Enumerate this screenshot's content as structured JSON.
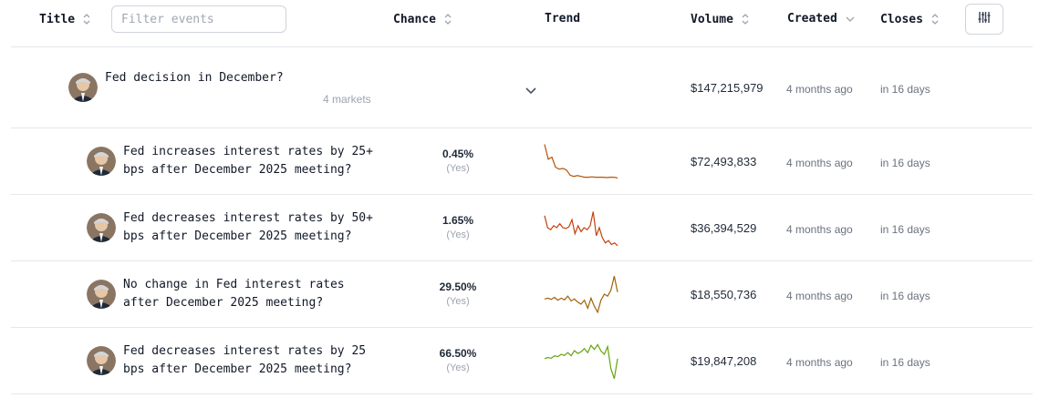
{
  "header": {
    "title": "Title",
    "filter_placeholder": "Filter events",
    "chance": "Chance",
    "trend": "Trend",
    "volume": "Volume",
    "created": "Created",
    "closes": "Closes",
    "settings_icon": "sliders-icon"
  },
  "event": {
    "title": "Fed decision in December?",
    "markets_count": "4 markets",
    "volume": "$147,215,979",
    "created": "4 months ago",
    "closes": "in 16 days"
  },
  "markets": [
    {
      "title_line1": "Fed increases interest rates by 25+",
      "title_line2": "bps after December 2025 meeting?",
      "chance": "0.45%",
      "outcome": "(Yes)",
      "volume": "$72,493,833",
      "created": "4 months ago",
      "closes": "in 16 days",
      "trend_color": "#b45309",
      "trend": [
        0.92,
        0.55,
        0.6,
        0.35,
        0.3,
        0.32,
        0.28,
        0.15,
        0.12,
        0.14,
        0.12,
        0.1,
        0.1,
        0.11,
        0.1,
        0.1,
        0.1,
        0.09,
        0.1,
        0.1,
        0.08
      ]
    },
    {
      "title_line1": "Fed decreases interest rates by 50+",
      "title_line2": "bps after December 2025 meeting?",
      "chance": "1.65%",
      "outcome": "(Yes)",
      "volume": "$36,394,529",
      "created": "4 months ago",
      "closes": "in 16 days",
      "trend_color": "#c2410c",
      "trend": [
        0.8,
        0.5,
        0.45,
        0.55,
        0.5,
        0.6,
        0.5,
        0.48,
        0.52,
        0.7,
        0.35,
        0.55,
        0.4,
        0.5,
        0.45,
        0.55,
        0.9,
        0.3,
        0.5,
        0.25,
        0.12,
        0.18,
        0.08,
        0.12,
        0.05
      ]
    },
    {
      "title_line1": "No change in Fed interest rates",
      "title_line2": "after December 2025 meeting?",
      "chance": "29.50%",
      "outcome": "(Yes)",
      "volume": "$18,550,736",
      "created": "4 months ago",
      "closes": "in 16 days",
      "trend_color": "#a16207",
      "trend": [
        0.38,
        0.4,
        0.37,
        0.42,
        0.35,
        0.4,
        0.36,
        0.45,
        0.33,
        0.38,
        0.3,
        0.25,
        0.35,
        0.15,
        0.4,
        0.2,
        0.05,
        0.35,
        0.5,
        0.45,
        0.6,
        0.95,
        0.55
      ]
    },
    {
      "title_line1": "Fed decreases interest rates by 25",
      "title_line2": "bps after December 2025 meeting?",
      "chance": "66.50%",
      "outcome": "(Yes)",
      "volume": "$19,847,208",
      "created": "4 months ago",
      "closes": "in 16 days",
      "trend_color": "#65a30d",
      "trend": [
        0.55,
        0.58,
        0.56,
        0.62,
        0.6,
        0.66,
        0.63,
        0.7,
        0.62,
        0.75,
        0.68,
        0.72,
        0.8,
        0.7,
        0.88,
        0.78,
        0.9,
        0.74,
        0.66,
        0.85,
        0.3,
        0.05,
        0.55
      ]
    }
  ]
}
